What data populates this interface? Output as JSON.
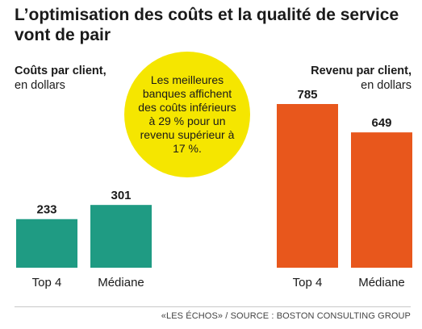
{
  "title": "L’optimisation des coûts et la qualité de service vont de pair",
  "left_axis": {
    "bold": "Coûts par client,",
    "sub": "en dollars"
  },
  "right_axis": {
    "bold": "Revenu par client,",
    "sub": "en dollars"
  },
  "callout": "Les meilleures banques affichent des coûts inférieurs à 29 % pour un revenu supérieur à 17 %.",
  "footer": "«LES ÉCHOS» / SOURCE : BOSTON CONSULTING GROUP",
  "chart_data": [
    {
      "type": "bar",
      "ylabel": "Coûts par client, en dollars",
      "categories": [
        "Top 4",
        "Médiane"
      ],
      "values": [
        233,
        301
      ],
      "color": "#1f9b83"
    },
    {
      "type": "bar",
      "ylabel": "Revenu par client, en dollars",
      "categories": [
        "Top 4",
        "Médiane"
      ],
      "values": [
        785,
        649
      ],
      "color": "#e8571c"
    }
  ]
}
